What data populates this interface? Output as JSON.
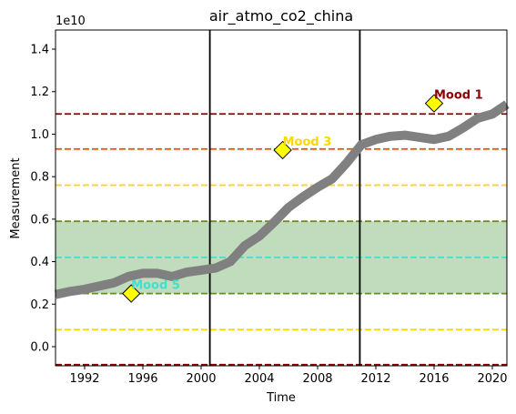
{
  "chart_data": {
    "type": "line",
    "title": "air_atmo_co2_china",
    "xlabel": "Time",
    "ylabel": "Measurement",
    "offset_text": "1e10",
    "xlim": [
      1990.0,
      2021.0
    ],
    "ylim": [
      -0.09,
      1.49
    ],
    "grid": false,
    "x_ticks": [
      1992,
      1996,
      2000,
      2004,
      2008,
      2012,
      2016,
      2020
    ],
    "x_tick_labels": [
      "1992",
      "1996",
      "2000",
      "2004",
      "2008",
      "2012",
      "2016",
      "2020"
    ],
    "y_ticks": [
      0.0,
      0.2,
      0.4,
      0.6,
      0.8,
      1.0,
      1.2,
      1.4
    ],
    "y_tick_labels": [
      "0.0",
      "0.2",
      "0.4",
      "0.6",
      "0.8",
      "1.0",
      "1.2",
      "1.4"
    ],
    "series": [
      {
        "color": "#808080",
        "x": [
          1990,
          1991,
          1992,
          1993,
          1994,
          1995,
          1996,
          1997,
          1998,
          1999,
          2000,
          2001,
          2002,
          2003,
          2004,
          2005,
          2006,
          2007,
          2008,
          2009,
          2010,
          2011,
          2012,
          2013,
          2014,
          2015,
          2016,
          2017,
          2018,
          2019,
          2020,
          2021
        ],
        "y": [
          0.245,
          0.26,
          0.27,
          0.285,
          0.3,
          0.33,
          0.345,
          0.345,
          0.33,
          0.35,
          0.36,
          0.37,
          0.4,
          0.475,
          0.52,
          0.585,
          0.655,
          0.705,
          0.75,
          0.79,
          0.865,
          0.95,
          0.975,
          0.99,
          0.995,
          0.985,
          0.975,
          0.99,
          1.03,
          1.075,
          1.095,
          1.14
        ]
      }
    ],
    "vertical_lines": [
      {
        "x": 2000.6,
        "color": "#000000"
      },
      {
        "x": 2010.9,
        "color": "#000000"
      }
    ],
    "horizontal_lines": [
      {
        "y": 1.095,
        "color": "#8b0000"
      },
      {
        "y": 0.93,
        "color": "#ff4500"
      },
      {
        "y": 0.76,
        "color": "#ffd700"
      },
      {
        "y": 0.59,
        "color": "#6b8e23"
      },
      {
        "y": 0.42,
        "color": "#40e0d0"
      },
      {
        "y": 0.25,
        "color": "#6b8e23"
      },
      {
        "y": 0.08,
        "color": "#ffd700"
      },
      {
        "y": -0.085,
        "color": "#8b0000"
      }
    ],
    "shaded_band": {
      "y0": 0.25,
      "y1": 0.59,
      "color": "#2e8b22"
    },
    "annotations": [
      {
        "text": "Mood 1",
        "x": 2016.0,
        "y": 1.145,
        "text_color": "#8b0000"
      },
      {
        "text": "Mood 3",
        "x": 2005.6,
        "y": 0.925,
        "text_color": "#ffd700"
      },
      {
        "text": "Mood 5",
        "x": 1995.2,
        "y": 0.25,
        "text_color": "#40e0d0"
      }
    ],
    "marker_color": "#ffff00"
  }
}
